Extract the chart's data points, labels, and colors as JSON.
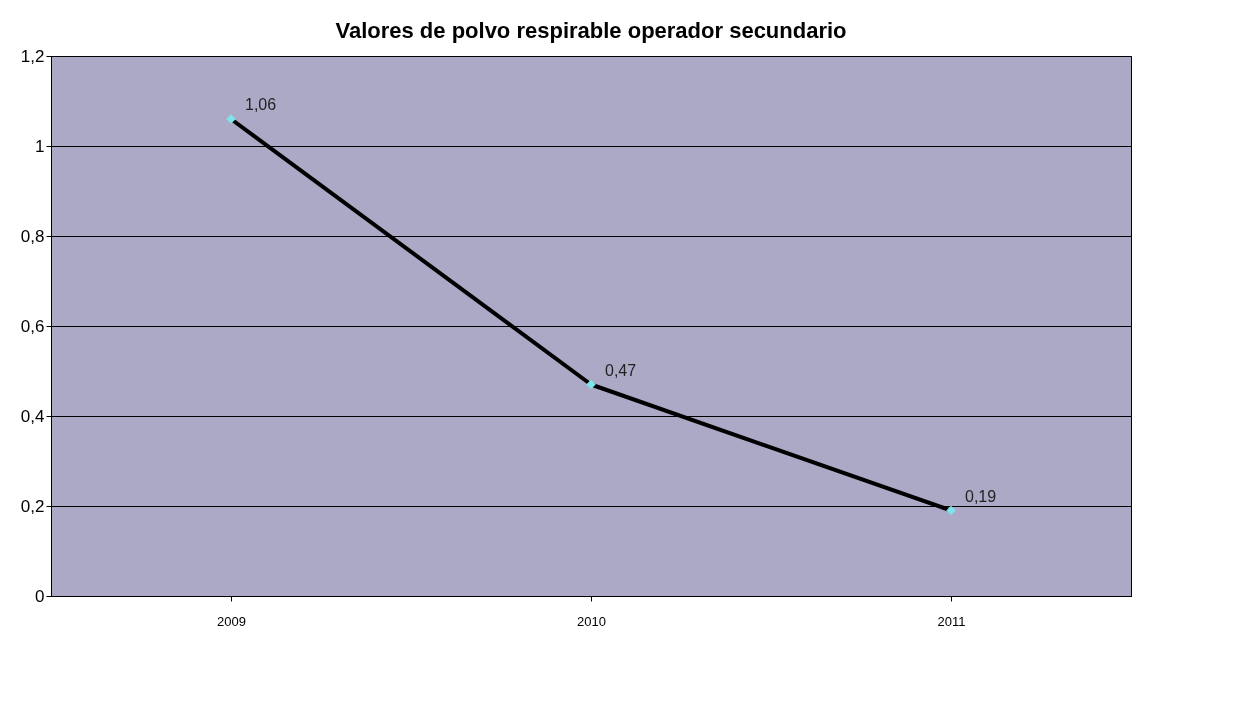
{
  "chart_data": {
    "type": "line",
    "title": "Valores de polvo respirable operador secundario",
    "categories": [
      "2009",
      "2010",
      "2011"
    ],
    "series": [
      {
        "color": "#000000",
        "values": [
          1.06,
          0.47,
          0.19
        ],
        "value_labels": [
          "1,06",
          "0,47",
          "0,19"
        ],
        "colors": [
          "#7fe3ea",
          "#7fe3ea",
          "#7fe3ea"
        ]
      }
    ],
    "ylim": [
      0,
      1.2
    ],
    "yticks": [
      0,
      {
        "value": 0.2,
        "label": "0,2"
      },
      {
        "value": 0.4,
        "label": "0,4"
      },
      {
        "value": 0.6,
        "label": "0,6"
      },
      {
        "value": 0.8,
        "label": "0,8"
      },
      1,
      {
        "value": 1.2,
        "label": "1,2"
      }
    ],
    "grid": "y",
    "marker": "diamond",
    "line_style": "solid"
  }
}
